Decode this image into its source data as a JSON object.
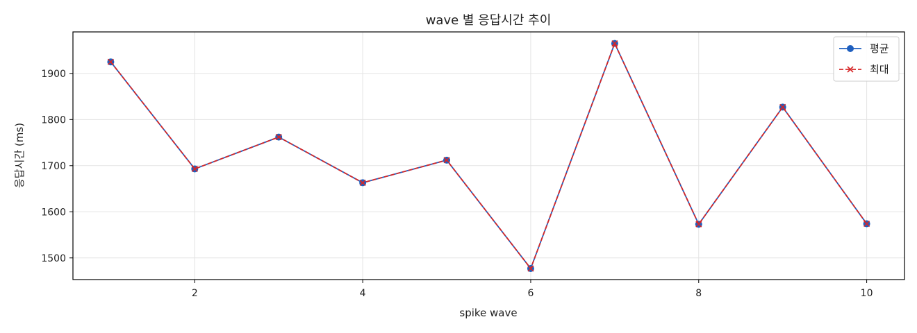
{
  "chart_data": {
    "type": "line",
    "title": "wave 별 응답시간 추이",
    "xlabel": "spike wave",
    "ylabel": "응답시간 (ms)",
    "x": [
      1,
      2,
      3,
      4,
      5,
      6,
      7,
      8,
      9,
      10
    ],
    "xlim": [
      0.55,
      10.45
    ],
    "ylim": [
      1453,
      1990
    ],
    "x_ticks": [
      2,
      4,
      6,
      8,
      10
    ],
    "y_ticks": [
      1500,
      1600,
      1700,
      1800,
      1900
    ],
    "grid": true,
    "legend_position": "top-right",
    "series": [
      {
        "name": "평균",
        "marker": "circle",
        "line_style": "solid",
        "color": "#1f5fbf",
        "values": [
          1925,
          1693,
          1762,
          1663,
          1712,
          1477,
          1965,
          1573,
          1827,
          1574
        ]
      },
      {
        "name": "최대",
        "marker": "x",
        "line_style": "dashed",
        "color": "#d62728",
        "values": [
          1925,
          1693,
          1762,
          1663,
          1712,
          1477,
          1965,
          1573,
          1827,
          1574
        ]
      }
    ]
  }
}
